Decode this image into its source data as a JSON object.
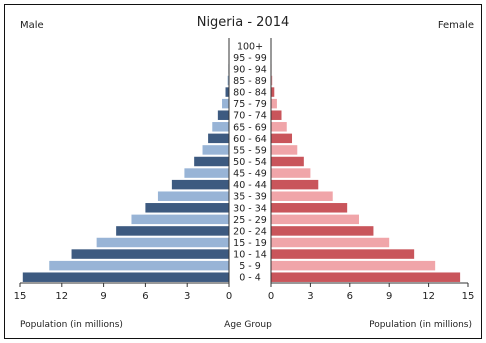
{
  "chart_data": {
    "type": "bar",
    "title": "Nigeria - 2014",
    "left_header": "Male",
    "right_header": "Female",
    "xlabel_left": "Population (in millions)",
    "xlabel_center": "Age Group",
    "xlabel_right": "Population (in millions)",
    "xlim": [
      0,
      15
    ],
    "x_ticks": [
      "15",
      "12",
      "9",
      "6",
      "3",
      "0",
      "0",
      "3",
      "6",
      "9",
      "12",
      "15"
    ],
    "categories": [
      "0 - 4",
      "5 - 9",
      "10 - 14",
      "15 - 19",
      "20 - 24",
      "25 - 29",
      "30 - 34",
      "35 - 39",
      "40 - 44",
      "45 - 49",
      "50 - 54",
      "55 - 59",
      "60 - 64",
      "65 - 69",
      "70 - 74",
      "75 - 79",
      "80 - 84",
      "85 - 89",
      "90 - 94",
      "95 - 99",
      "100+"
    ],
    "series": [
      {
        "name": "Male",
        "values": [
          14.8,
          12.9,
          11.3,
          9.5,
          8.1,
          7.0,
          6.0,
          5.1,
          4.1,
          3.2,
          2.5,
          1.9,
          1.5,
          1.2,
          0.8,
          0.5,
          0.25,
          0.1,
          0.04,
          0.01,
          0.0
        ]
      },
      {
        "name": "Female",
        "values": [
          14.4,
          12.5,
          10.9,
          9.0,
          7.8,
          6.7,
          5.8,
          4.7,
          3.6,
          3.0,
          2.5,
          2.0,
          1.6,
          1.2,
          0.8,
          0.45,
          0.25,
          0.1,
          0.04,
          0.01,
          0.0
        ]
      }
    ],
    "colors": {
      "male_dark": "#3d5a80",
      "male_light": "#98b4d6",
      "female_dark": "#c9555b",
      "female_light": "#f0a5a9"
    },
    "grid": false,
    "legend": "none"
  }
}
